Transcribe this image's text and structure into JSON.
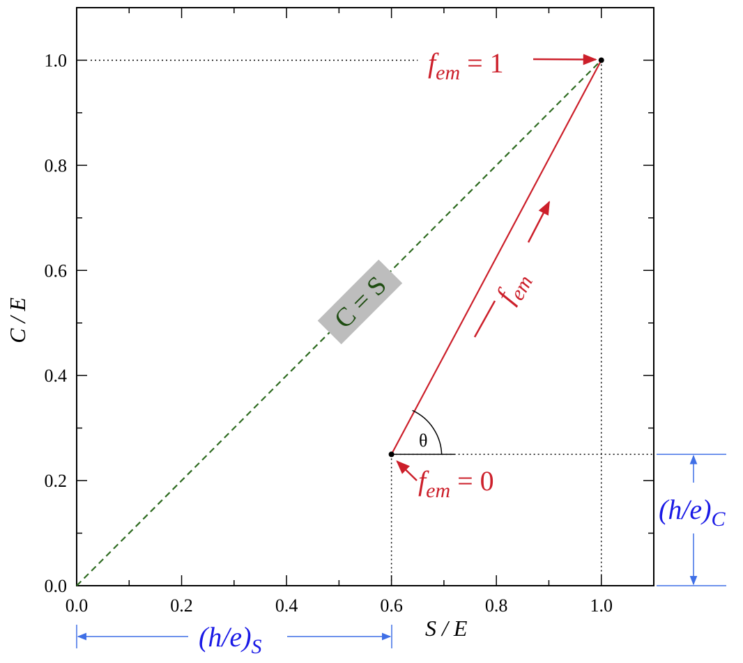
{
  "chart_data": {
    "type": "line",
    "xlabel": "S / E",
    "ylabel": "C / E",
    "xlim": [
      0.0,
      1.1
    ],
    "ylim": [
      0.0,
      1.1
    ],
    "x_ticks": [
      "0.0",
      "0.2",
      "0.4",
      "0.6",
      "0.8",
      "1.0"
    ],
    "y_ticks": [
      "0.0",
      "0.2",
      "0.4",
      "0.6",
      "0.8",
      "1.0"
    ],
    "grid": false,
    "series": [
      {
        "name": "C = S",
        "style": "dashed",
        "color": "#2d6a1f",
        "x": [
          0.0,
          1.0
        ],
        "y": [
          0.0,
          1.0
        ]
      },
      {
        "name": "",
        "style": "solid",
        "color": "#cc1f2a",
        "x": [
          0.6,
          1.0
        ],
        "y": [
          0.25,
          1.0
        ]
      }
    ],
    "points": [
      {
        "label_base": "f",
        "label_sub": "em",
        "label_eq": "= 0",
        "x": 0.6,
        "y": 0.25
      },
      {
        "label_base": "f",
        "label_sub": "em",
        "label_eq": "= 1",
        "x": 1.0,
        "y": 1.0
      }
    ],
    "annotations": {
      "diagonal_label": "C = S",
      "fem_base": "f",
      "fem_sub": "em",
      "angle_label": "θ",
      "hs_base": "(h/e)",
      "hs_sub": "S",
      "hc_base": "(h/e)",
      "hc_sub": "C"
    },
    "colors": {
      "red": "#cc1f2a",
      "green": "#2d6a1f",
      "blue": "#1a1ae6",
      "blue_arrow": "#3f6fe6",
      "label_box": "#bdbdbd"
    }
  }
}
